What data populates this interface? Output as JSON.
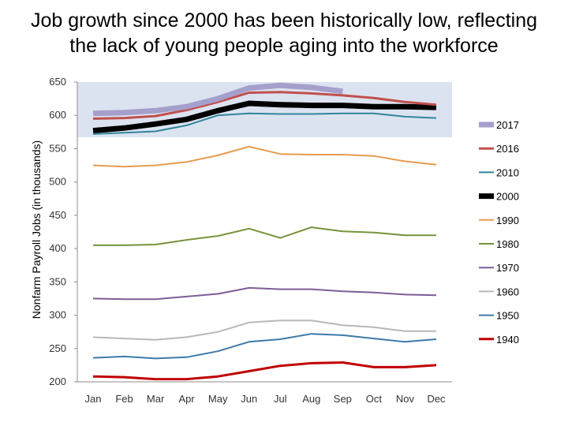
{
  "page": {
    "title_line1": "Job growth since 2000 has been historically low, reflecting",
    "title_line2": "the lack of young people aging into the workforce"
  },
  "chart_data": {
    "type": "line",
    "title": "Job growth since 2000 has been historically low, reflecting the lack of young people aging into the workforce",
    "xlabel": "",
    "ylabel": "Nonfarm Payroll Jobs (in thousands)",
    "categories": [
      "Jan",
      "Feb",
      "Mar",
      "Apr",
      "May",
      "Jun",
      "Jul",
      "Aug",
      "Sep",
      "Oct",
      "Nov",
      "Dec"
    ],
    "ylim": [
      200,
      650
    ],
    "yticks": [
      200,
      250,
      300,
      350,
      400,
      450,
      500,
      550,
      600,
      650
    ],
    "grid": false,
    "legend": "right",
    "highlight_band": {
      "from": 567,
      "to": 650,
      "color": "#dce3f0"
    },
    "series": [
      {
        "name": "2017",
        "color": "#a59fcb",
        "width": 7,
        "values": [
          603,
          604,
          607,
          613,
          625,
          641,
          645,
          642,
          636,
          null,
          null,
          null
        ]
      },
      {
        "name": "2016",
        "color": "#c0504d",
        "width": 3,
        "values": [
          595,
          596,
          599,
          608,
          620,
          634,
          635,
          633,
          630,
          626,
          620,
          616
        ]
      },
      {
        "name": "2010",
        "color": "#31859c",
        "width": 2,
        "values": [
          572,
          574,
          576,
          585,
          600,
          603,
          602,
          602,
          603,
          603,
          598,
          596
        ]
      },
      {
        "name": "2000",
        "color": "#000000",
        "width": 7,
        "values": [
          577,
          581,
          587,
          594,
          607,
          618,
          616,
          615,
          615,
          613,
          613,
          612
        ]
      },
      {
        "name": "1990",
        "color": "#e69c4f",
        "width": 2,
        "values": [
          525,
          523,
          525,
          530,
          540,
          553,
          542,
          541,
          541,
          539,
          531,
          526
        ]
      },
      {
        "name": "1980",
        "color": "#77933c",
        "width": 2,
        "values": [
          405,
          405,
          406,
          413,
          419,
          430,
          416,
          432,
          426,
          424,
          420,
          420
        ]
      },
      {
        "name": "1970",
        "color": "#7e5d96",
        "width": 2,
        "values": [
          325,
          324,
          324,
          328,
          332,
          341,
          339,
          339,
          336,
          334,
          331,
          330
        ]
      },
      {
        "name": "1960",
        "color": "#b8b8b8",
        "width": 2,
        "values": [
          267,
          265,
          263,
          267,
          275,
          289,
          292,
          292,
          285,
          282,
          276,
          276
        ]
      },
      {
        "name": "1950",
        "color": "#3d7aa8",
        "width": 2,
        "values": [
          236,
          238,
          235,
          237,
          246,
          260,
          264,
          272,
          270,
          265,
          260,
          264
        ]
      },
      {
        "name": "1940",
        "color": "#c00000",
        "width": 3,
        "values": [
          208,
          207,
          204,
          204,
          208,
          216,
          224,
          228,
          229,
          222,
          222,
          225
        ]
      }
    ]
  }
}
